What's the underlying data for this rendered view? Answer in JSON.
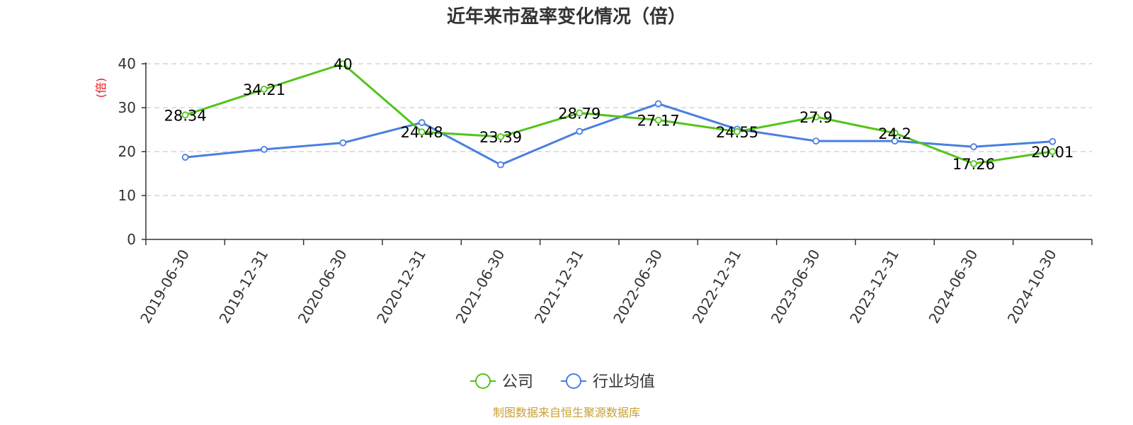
{
  "chart_data": {
    "type": "line",
    "title": "近年来市盈率变化情况（倍）",
    "ylabel": "(倍)",
    "ylim": [
      0,
      40
    ],
    "yticks": [
      0,
      10,
      20,
      30,
      40
    ],
    "grid": true,
    "legend_position": "bottom",
    "categories": [
      "2019-06-30",
      "2019-12-31",
      "2020-06-30",
      "2020-12-31",
      "2021-06-30",
      "2021-12-31",
      "2022-06-30",
      "2022-12-31",
      "2023-06-30",
      "2023-12-31",
      "2024-06-30",
      "2024-10-30"
    ],
    "series": [
      {
        "name": "公司",
        "color": "#52c41a",
        "values": [
          28.34,
          34.21,
          40,
          24.48,
          23.39,
          28.79,
          27.17,
          24.55,
          27.9,
          24.2,
          17.26,
          20.01
        ],
        "labels": [
          "28.34",
          "34.21",
          "40",
          "24.48",
          "23.39",
          "28.79",
          "27.17",
          "24.55",
          "27.9",
          "24.2",
          "17.26",
          "20.01"
        ]
      },
      {
        "name": "行业均值",
        "color": "#4a7fe0",
        "values": [
          18.7,
          20.5,
          22.0,
          26.6,
          17.0,
          24.6,
          30.9,
          25.1,
          22.4,
          22.4,
          21.1,
          22.3
        ]
      }
    ],
    "source": "制图数据来自恒生聚源数据库"
  }
}
